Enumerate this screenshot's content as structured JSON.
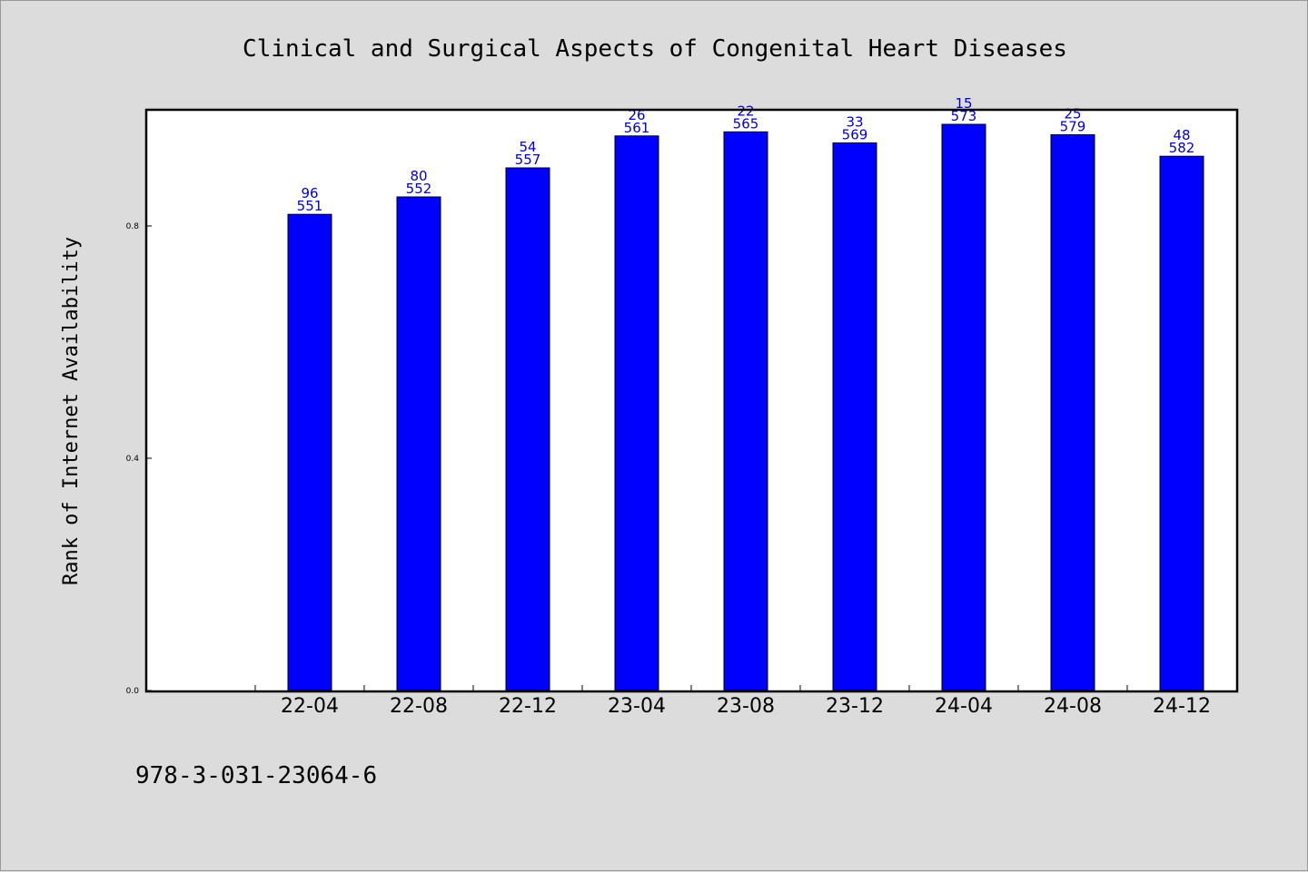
{
  "chart_data": {
    "type": "bar",
    "title": "Clinical and Surgical Aspects of Congenital Heart Diseases",
    "xlabel": "",
    "ylabel": "Rank of Internet Availability",
    "categories": [
      "22-04",
      "22-08",
      "22-12",
      "23-04",
      "23-08",
      "23-12",
      "24-04",
      "24-08",
      "24-12"
    ],
    "values": [
      0.82,
      0.85,
      0.9,
      0.955,
      0.962,
      0.943,
      0.975,
      0.957,
      0.92
    ],
    "bar_labels_top": [
      "96",
      "80",
      "54",
      "26",
      "22",
      "33",
      "15",
      "25",
      "48"
    ],
    "bar_labels_bottom": [
      "551",
      "552",
      "557",
      "561",
      "565",
      "569",
      "573",
      "579",
      "582"
    ],
    "ylim": [
      0.0,
      1.0
    ],
    "yticks": [
      "0.0",
      "0.4",
      "0.8"
    ],
    "ytick_values": [
      0.0,
      0.4,
      0.8
    ],
    "grid": false,
    "bar_color": "#0000ff",
    "label_color": "#0000cc"
  },
  "footer": {
    "isbn": "978-3-031-23064-6"
  }
}
